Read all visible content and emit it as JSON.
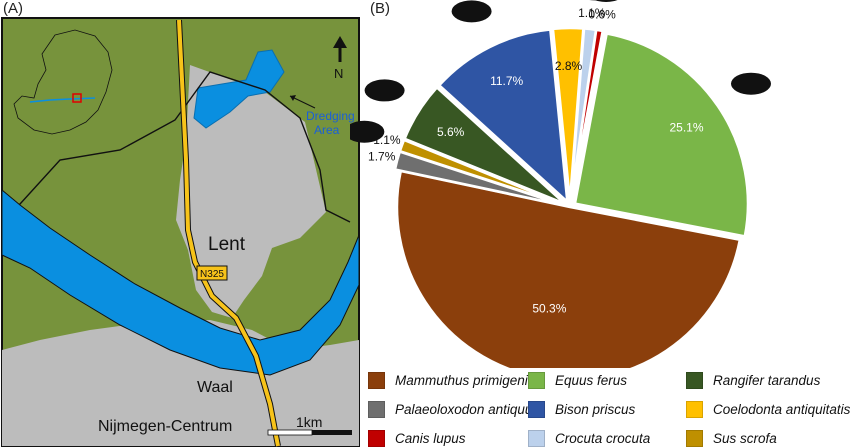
{
  "panels": {
    "a": "(A)",
    "b": "(B)"
  },
  "map": {
    "town_label": "Lent",
    "road_label": "N325",
    "river_label": "Waal",
    "city_label": "Nijmegen-Centrum",
    "area_label_line1": "Dredging",
    "area_label_line2": "Area",
    "north_label": "N",
    "scale_label": "1km"
  },
  "colors": {
    "land": "#77933c",
    "urban": "#bcbcbc",
    "water": "#0a8fe0",
    "road": "#f7c31a",
    "dredging": "#0a8fe0"
  },
  "chart_data": {
    "type": "pie",
    "title": "",
    "slices": [
      {
        "name": "Mammuthus primigenius",
        "value": 50.3,
        "label": "50.3%",
        "color": "#8b3f0c",
        "icon": "mammoth-icon"
      },
      {
        "name": "Equus ferus",
        "value": 25.1,
        "label": "25.1%",
        "color": "#7ab648",
        "icon": "horse-icon"
      },
      {
        "name": "Canis lupus",
        "value": 0.6,
        "label": "0.6%",
        "color": "#c00000",
        "icon": "wolf-icon"
      },
      {
        "name": "Crocuta crocuta",
        "value": 1.1,
        "label": "1.1%",
        "color": "#bcd1ec",
        "icon": "hyena-icon"
      },
      {
        "name": "Coelodonta antiquitatis",
        "value": 2.8,
        "label": "2.8%",
        "color": "#ffc000",
        "icon": "rhino-icon"
      },
      {
        "name": "Bison priscus",
        "value": 11.7,
        "label": "11.7%",
        "color": "#2f55a4",
        "icon": "bison-icon"
      },
      {
        "name": "Rangifer tarandus",
        "value": 5.6,
        "label": "5.6%",
        "color": "#385723",
        "icon": "reindeer-icon"
      },
      {
        "name": "Sus scrofa",
        "value": 1.1,
        "label": "1.1%",
        "color": "#bf9000",
        "icon": "boar-icon"
      },
      {
        "name": "Palaeoloxodon antiquus",
        "value": 1.7,
        "label": "1.7%",
        "color": "#6f6f6f",
        "icon": "elephant-icon"
      }
    ],
    "legend_order": [
      "Mammuthus primigenius",
      "Equus ferus",
      "Rangifer tarandus",
      "Palaeoloxodon antiquus",
      "Bison priscus",
      "Coelodonta antiquitatis",
      "Canis lupus",
      "Crocuta crocuta",
      "Sus scrofa"
    ],
    "legend_placement": "bottom"
  }
}
